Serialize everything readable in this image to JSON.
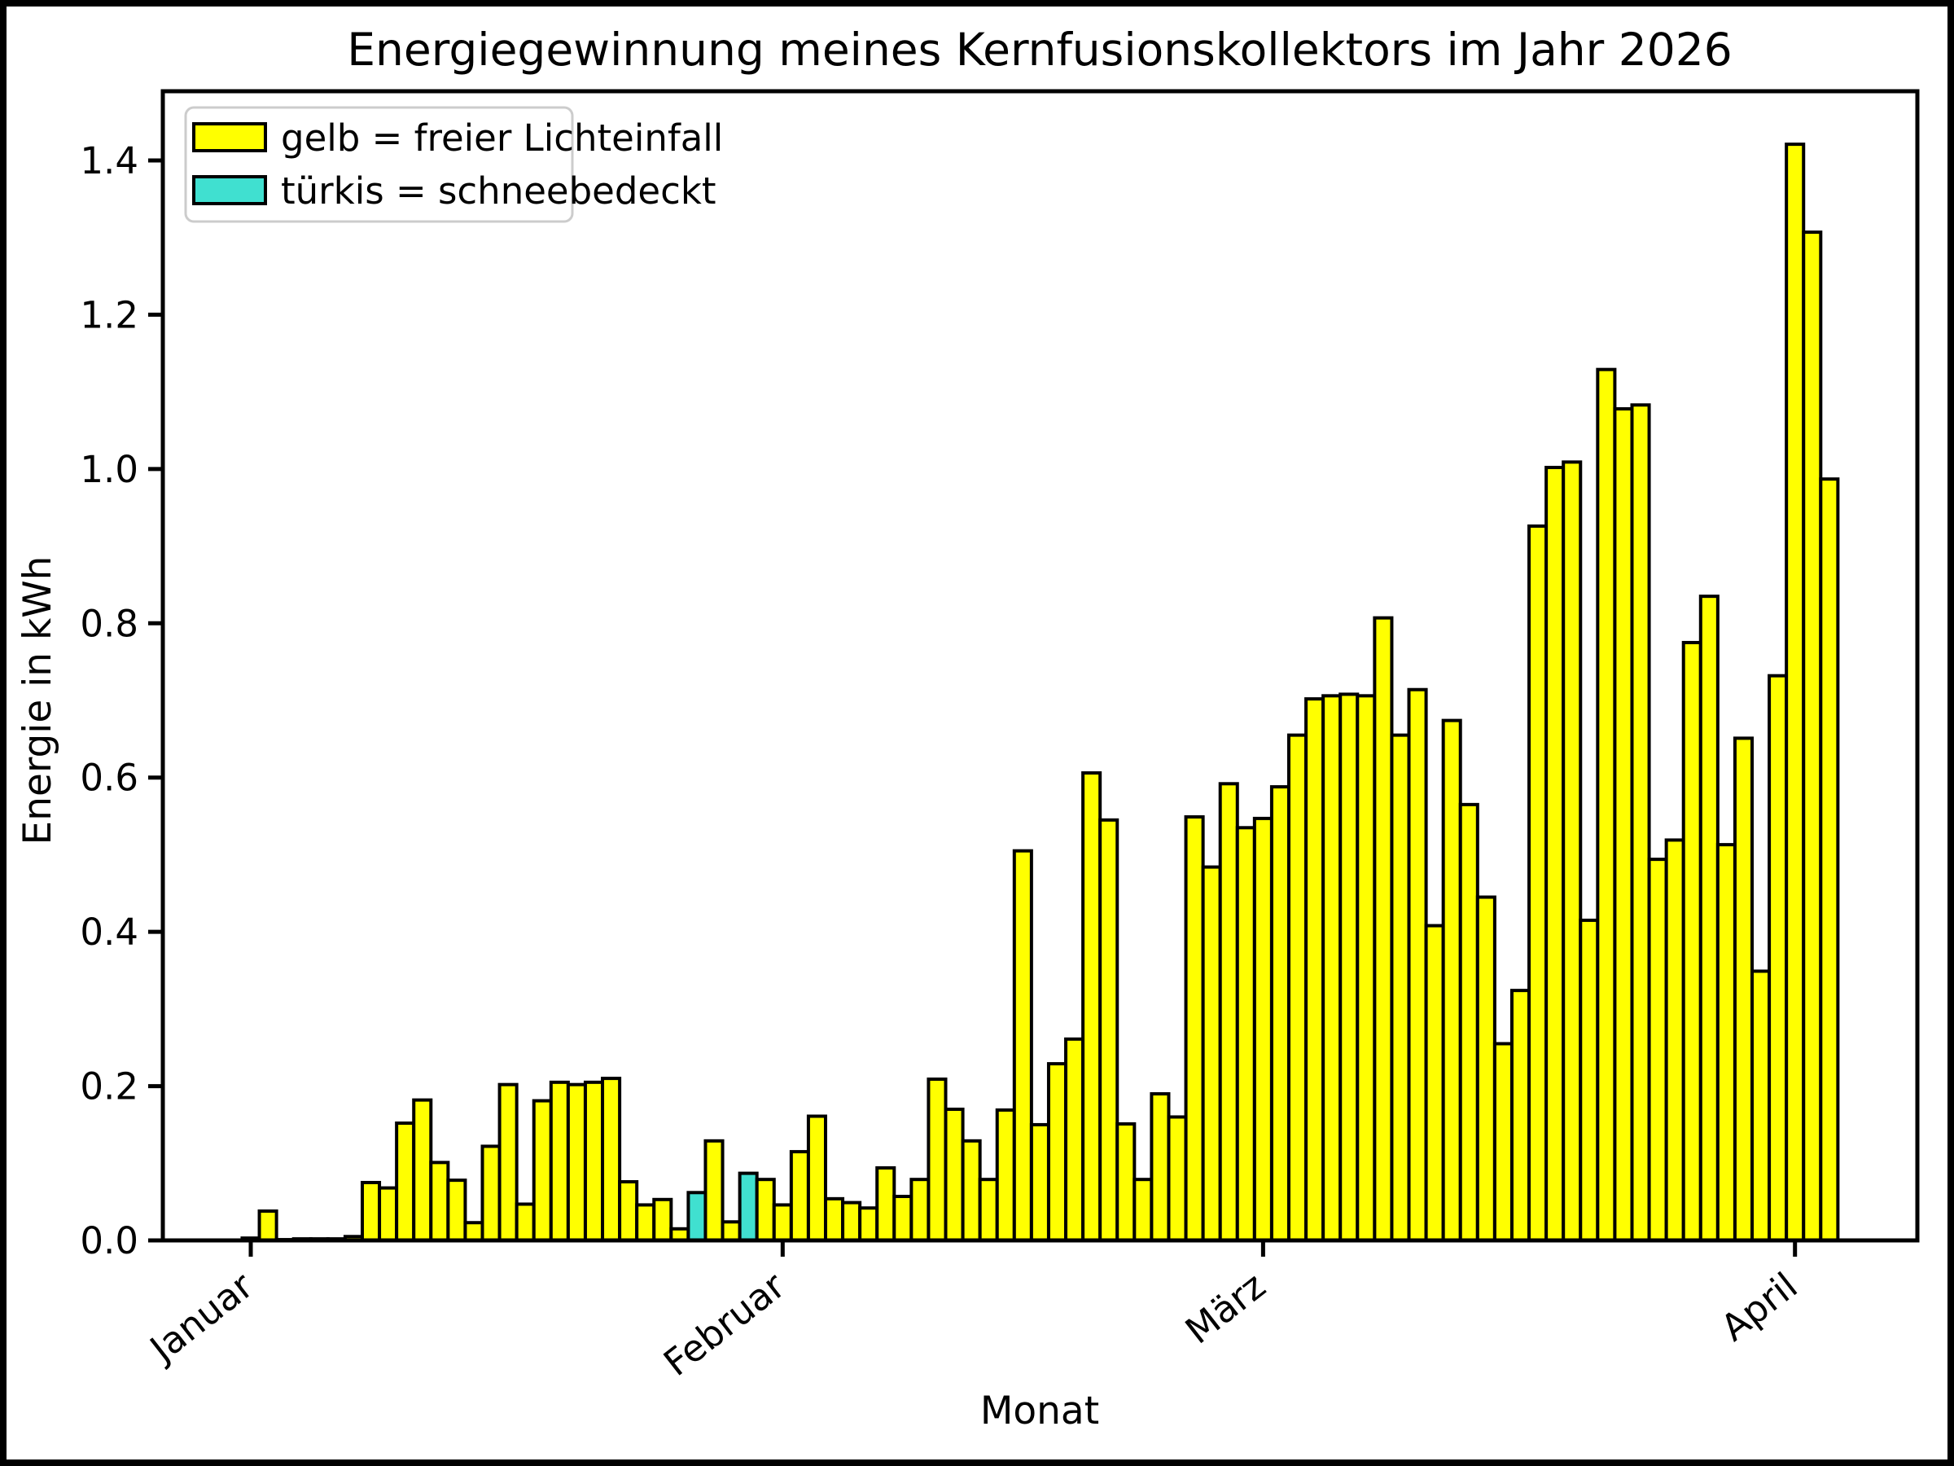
{
  "title": "Energiegewinnung meines Kernfusionskollektors im Jahr 2026",
  "colors": {
    "free_light": "#ffff00",
    "snow_covered": "#40e0d0",
    "bar_edge": "#000000",
    "axis": "#000000",
    "legend_frame": "#cccccc",
    "background": "#ffffff"
  },
  "legend": {
    "items": [
      {
        "label": "gelb = freier Lichteinfall",
        "color_key": "free_light"
      },
      {
        "label": "türkis = schneebedeckt",
        "color_key": "snow_covered"
      }
    ]
  },
  "chart_data": {
    "type": "bar",
    "title": "Energiegewinnung meines Kernfusionskollektors im Jahr 2026",
    "xlabel": "Monat",
    "ylabel": "Energie in kWh",
    "ylim": [
      0,
      1.49
    ],
    "grid": false,
    "legend_position": "upper-left",
    "y_ticks": [
      "0.0",
      "0.2",
      "0.4",
      "0.6",
      "0.8",
      "1.0",
      "1.2",
      "1.4"
    ],
    "y_tick_values": [
      0.0,
      0.2,
      0.4,
      0.6,
      0.8,
      1.0,
      1.2,
      1.4
    ],
    "x_ticks": [
      {
        "label": "Januar",
        "day_index": 0
      },
      {
        "label": "Februar",
        "day_index": 31
      },
      {
        "label": "März",
        "day_index": 59
      },
      {
        "label": "April",
        "day_index": 90
      }
    ],
    "series_unit": "kWh",
    "values": [
      0.003,
      0.038,
      0.001,
      0.002,
      0.002,
      0.002,
      0.005,
      0.075,
      0.068,
      0.152,
      0.182,
      0.101,
      0.078,
      0.023,
      0.122,
      0.202,
      0.047,
      0.181,
      0.205,
      0.202,
      0.205,
      0.21,
      0.076,
      0.046,
      0.053,
      0.015,
      0.062,
      0.129,
      0.024,
      0.087,
      0.079,
      0.046,
      0.115,
      0.161,
      0.054,
      0.049,
      0.042,
      0.094,
      0.057,
      0.079,
      0.209,
      0.17,
      0.129,
      0.079,
      0.169,
      0.505,
      0.15,
      0.229,
      0.261,
      0.606,
      0.545,
      0.151,
      0.079,
      0.19,
      0.16,
      0.549,
      0.484,
      0.592,
      0.535,
      0.547,
      0.588,
      0.655,
      0.702,
      0.706,
      0.708,
      0.706,
      0.807,
      0.655,
      0.714,
      0.408,
      0.674,
      0.565,
      0.445,
      0.255,
      0.324,
      0.926,
      1.002,
      1.009,
      0.415,
      1.129,
      1.078,
      1.083,
      0.494,
      0.519,
      0.775,
      0.835,
      0.513,
      0.651,
      0.349,
      0.732,
      1.421,
      1.307,
      0.987
    ],
    "snow_covered_indices": [
      26,
      29
    ]
  }
}
